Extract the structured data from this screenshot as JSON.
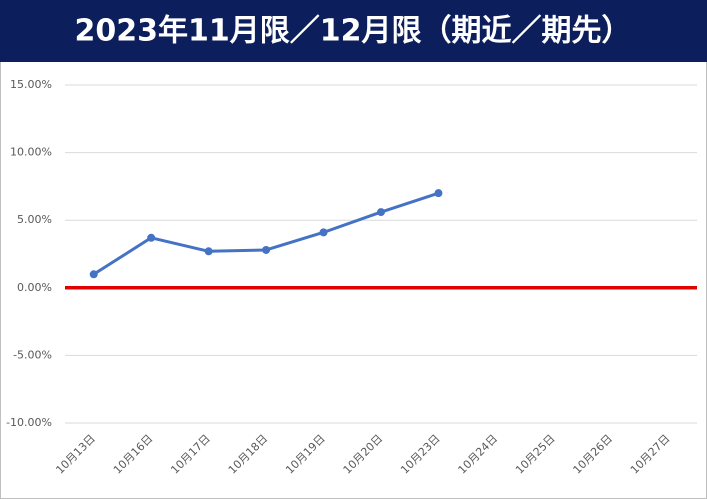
{
  "chart_data": {
    "type": "line",
    "title": "2023年11月限／12月限（期近／期先）",
    "categories": [
      "10月13日",
      "10月16日",
      "10月17日",
      "10月18日",
      "10月19日",
      "10月20日",
      "10月23日",
      "10月24日",
      "10月25日",
      "10月26日",
      "10月27日"
    ],
    "series": [
      {
        "color": "#4472c4",
        "values": [
          1.0,
          3.7,
          2.7,
          2.8,
          4.1,
          5.6,
          7.0,
          null,
          null,
          null,
          null
        ]
      }
    ],
    "ylim": [
      -10,
      15
    ],
    "yticks": [
      {
        "value": -10,
        "label": "-10.00%"
      },
      {
        "value": -5,
        "label": "-5.00%"
      },
      {
        "value": 0,
        "label": "0.00%"
      },
      {
        "value": 5,
        "label": "5.00%"
      },
      {
        "value": 10,
        "label": "10.00%"
      },
      {
        "value": 15,
        "label": "15.00%"
      }
    ],
    "grid": true,
    "reference_line": {
      "value": 0,
      "color": "#e00000"
    }
  }
}
